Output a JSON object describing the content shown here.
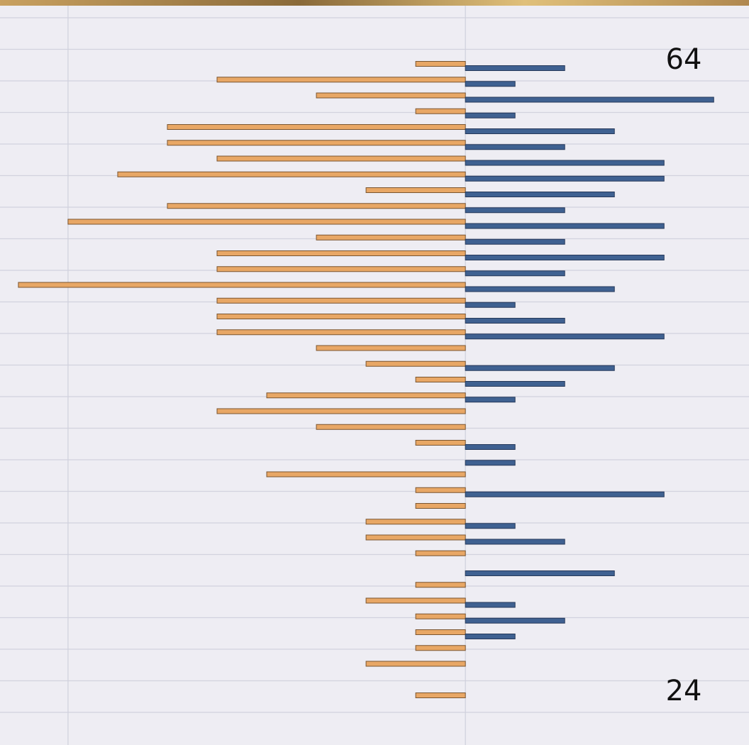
{
  "chart_data": {
    "type": "pyramid",
    "categories": [
      "64",
      null,
      null,
      null,
      null,
      null,
      null,
      null,
      null,
      null,
      null,
      null,
      null,
      null,
      null,
      null,
      null,
      null,
      null,
      null,
      null,
      null,
      null,
      null,
      null,
      null,
      null,
      null,
      null,
      null,
      null,
      null,
      null,
      null,
      null,
      null,
      null,
      null,
      null,
      null,
      "24"
    ],
    "series": [
      {
        "color": "#e8a765",
        "values": [
          -1,
          -5,
          -3,
          -1,
          -6,
          -6,
          -5,
          -7,
          -2,
          -6,
          -8,
          -3,
          -5,
          -5,
          -9,
          -5,
          -5,
          -5,
          -3,
          -2,
          -1,
          -4,
          -5,
          -3,
          -1,
          0,
          -4,
          -1,
          -1,
          -2,
          -2,
          -1,
          0,
          -1,
          -2,
          -1,
          -1,
          -1,
          -2,
          0,
          -1
        ]
      },
      {
        "color": "#3f6191",
        "values": [
          2,
          1,
          5,
          1,
          3,
          2,
          4,
          4,
          3,
          2,
          4,
          2,
          4,
          2,
          3,
          1,
          2,
          4,
          0,
          3,
          2,
          1,
          0,
          0,
          1,
          1,
          0,
          4,
          0,
          1,
          2,
          0,
          3,
          0,
          1,
          2,
          1,
          0,
          0,
          0,
          0
        ]
      }
    ],
    "xlim": [
      -9.37,
      5.71
    ],
    "xticks": [
      -8,
      0
    ],
    "grid": true
  }
}
